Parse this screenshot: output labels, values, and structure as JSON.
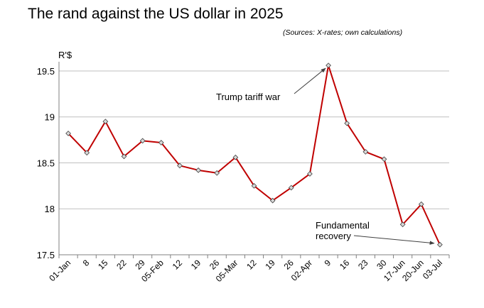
{
  "chart_data": {
    "type": "line",
    "title": "The rand against the US dollar in 2025",
    "subtitle": "(Sources: X-rates; own calculations)",
    "ylabel": "R'$",
    "xlabel": "",
    "ylim": [
      17.5,
      19.6
    ],
    "yticks": [
      17.5,
      18,
      18.5,
      19,
      19.5
    ],
    "grid": true,
    "legend": "none",
    "categories": [
      "01-Jan",
      "8",
      "15",
      "22",
      "29",
      "05-Feb",
      "12",
      "19",
      "26",
      "05-Mar",
      "12",
      "19",
      "26",
      "02-Apr",
      "9",
      "16",
      "23",
      "30",
      "17-Jun",
      "20-Jun",
      "03-Jul"
    ],
    "series": [
      {
        "color": "#c00000",
        "values": [
          18.82,
          18.61,
          18.95,
          18.57,
          18.74,
          18.72,
          18.47,
          18.42,
          18.39,
          18.56,
          18.25,
          18.09,
          18.23,
          18.38,
          19.56,
          18.93,
          18.62,
          18.54,
          17.83,
          18.05,
          17.61
        ]
      }
    ],
    "annotations": [
      {
        "text": "Trump tariff war",
        "target_index": 14
      },
      {
        "text": "Fundamental recovery",
        "lines": [
          "Fundamental",
          "recovery"
        ],
        "target_index": 20
      }
    ]
  }
}
